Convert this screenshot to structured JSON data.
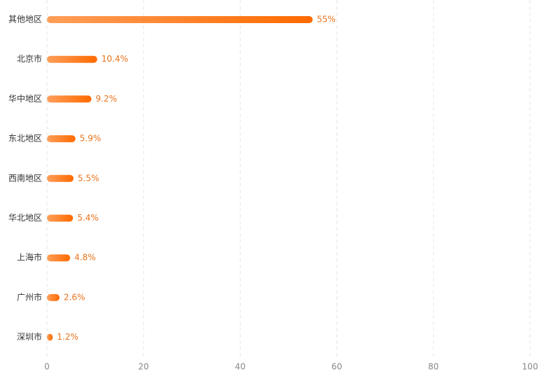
{
  "chart_data": {
    "type": "bar",
    "orientation": "horizontal",
    "categories": [
      "其他地区",
      "北京市",
      "华中地区",
      "东北地区",
      "西南地区",
      "华北地区",
      "上海市",
      "广州市",
      "深圳市"
    ],
    "values": [
      55,
      10.4,
      9.2,
      5.9,
      5.5,
      5.4,
      4.8,
      2.6,
      1.2
    ],
    "value_labels": [
      "55%",
      "10.4%",
      "9.2%",
      "5.9%",
      "5.5%",
      "5.4%",
      "4.8%",
      "2.6%",
      "1.2%"
    ],
    "color": "#ff6a00",
    "xlim": [
      0,
      100
    ],
    "xticks": [
      0,
      20,
      40,
      60,
      80,
      100
    ],
    "grid": true
  }
}
